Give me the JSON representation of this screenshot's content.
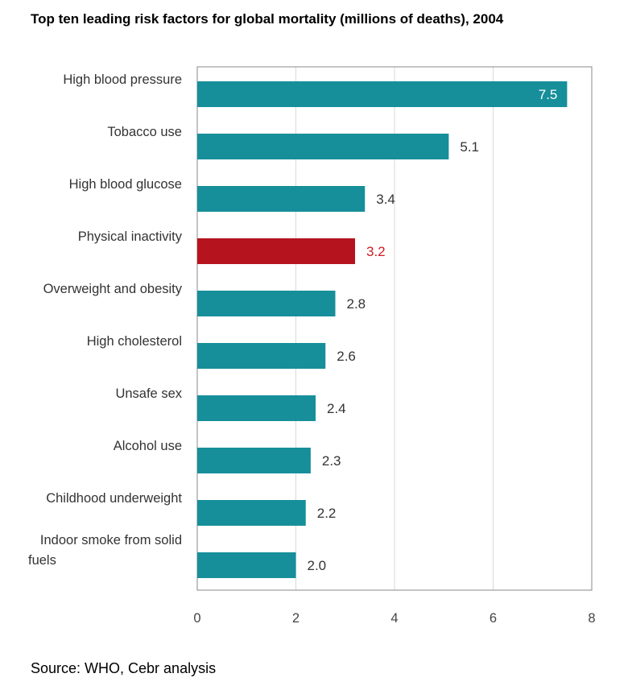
{
  "title": "Top ten leading risk factors for global mortality (millions of deaths), 2004",
  "source": "Source: WHO, Cebr analysis",
  "colors": {
    "default": "#168f9a",
    "highlight": "#b5141e",
    "highlight_label": "#d01a20",
    "axis": "#888888",
    "grid": "#d9d9d9"
  },
  "chart_data": {
    "type": "bar",
    "orientation": "horizontal",
    "categories": [
      "High blood pressure",
      "Tobacco use",
      "High blood glucose",
      "Physical inactivity",
      "Overweight and obesity",
      "High cholesterol",
      "Unsafe sex",
      "Alcohol use",
      "Childhood underweight",
      "Indoor smoke from solid fuels"
    ],
    "values": [
      7.5,
      5.1,
      3.4,
      3.2,
      2.8,
      2.6,
      2.4,
      2.3,
      2.2,
      2.0
    ],
    "labels": [
      "7.5",
      "5.1",
      "3.4",
      "3.2",
      "2.8",
      "2.6",
      "2.4",
      "2.3",
      "2.2",
      "2.0"
    ],
    "highlight": "Physical inactivity",
    "xlim": [
      0,
      8
    ],
    "xticks": [
      "0",
      "2",
      "4",
      "6",
      "8"
    ],
    "grid": true,
    "title": "Top ten leading risk factors for global mortality (millions of deaths), 2004",
    "xlabel": "",
    "ylabel": ""
  }
}
